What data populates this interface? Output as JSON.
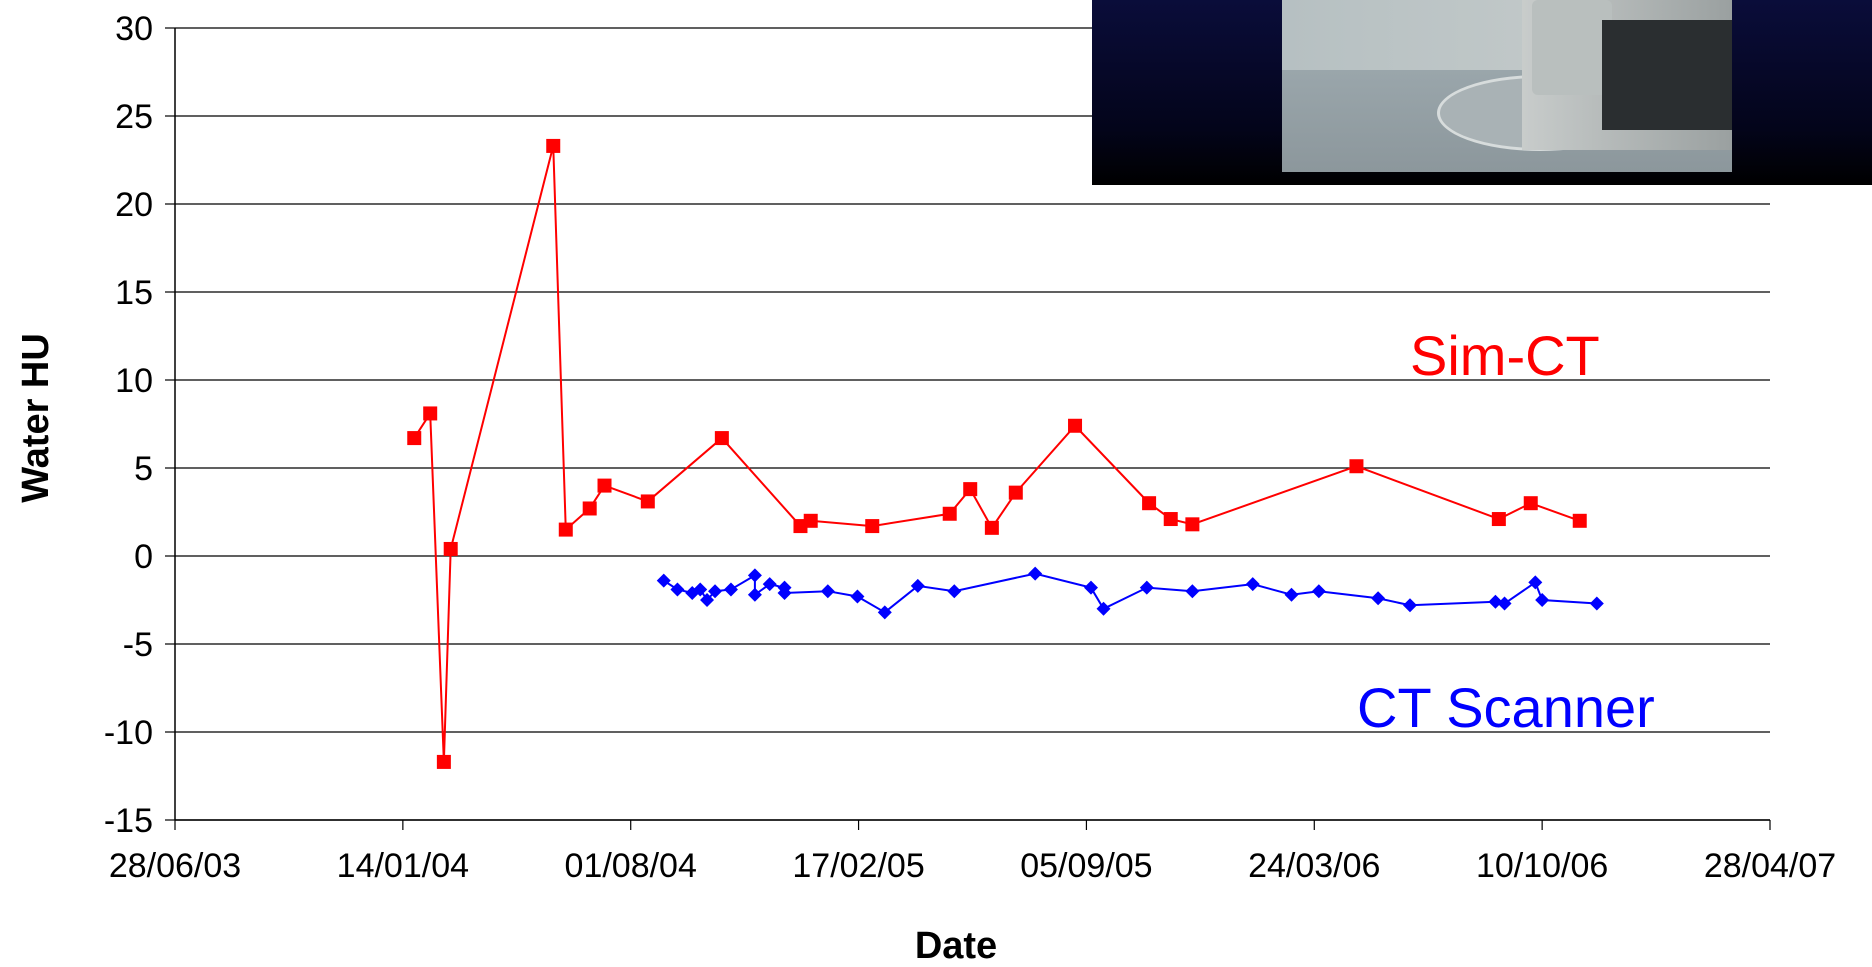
{
  "chart_data": {
    "type": "line",
    "xlabel": "Date",
    "ylabel": "Water HU",
    "ylim": [
      -15,
      30
    ],
    "yticks": [
      "30",
      "25",
      "20",
      "15",
      "10",
      "5",
      "0",
      "-5",
      "-10",
      "-15"
    ],
    "xlim": [
      "2003-06-28",
      "2007-04-28"
    ],
    "xticks": [
      "28/06/03",
      "14/01/04",
      "01/08/04",
      "17/02/05",
      "05/09/05",
      "24/03/06",
      "10/10/06",
      "28/04/07"
    ],
    "grid": "horizontal",
    "series": [
      {
        "name": "Sim-CT",
        "color": "#ff0000",
        "marker": "square",
        "points": [
          {
            "x": "2004-01-24",
            "y": 6.7
          },
          {
            "x": "2004-02-07",
            "y": 8.1
          },
          {
            "x": "2004-02-19",
            "y": -11.7
          },
          {
            "x": "2004-02-25",
            "y": 0.4
          },
          {
            "x": "2004-05-25",
            "y": 23.3
          },
          {
            "x": "2004-06-05",
            "y": 1.5
          },
          {
            "x": "2004-06-26",
            "y": 2.7
          },
          {
            "x": "2004-07-09",
            "y": 4.0
          },
          {
            "x": "2004-08-16",
            "y": 3.1
          },
          {
            "x": "2004-10-20",
            "y": 6.7
          },
          {
            "x": "2004-12-28",
            "y": 1.7
          },
          {
            "x": "2005-01-06",
            "y": 2.0
          },
          {
            "x": "2005-03-01",
            "y": 1.7
          },
          {
            "x": "2005-05-08",
            "y": 2.4
          },
          {
            "x": "2005-05-26",
            "y": 3.8
          },
          {
            "x": "2005-06-14",
            "y": 1.6
          },
          {
            "x": "2005-07-05",
            "y": 3.6
          },
          {
            "x": "2005-08-26",
            "y": 7.4
          },
          {
            "x": "2005-10-30",
            "y": 3.0
          },
          {
            "x": "2005-11-18",
            "y": 2.1
          },
          {
            "x": "2005-12-07",
            "y": 1.8
          },
          {
            "x": "2006-04-30",
            "y": 5.1
          },
          {
            "x": "2006-09-02",
            "y": 2.1
          },
          {
            "x": "2006-09-30",
            "y": 3.0
          },
          {
            "x": "2006-11-12",
            "y": 2.0
          }
        ]
      },
      {
        "name": "CT Scanner",
        "color": "#0000ff",
        "marker": "diamond",
        "points": [
          {
            "x": "2004-08-30",
            "y": -1.4
          },
          {
            "x": "2004-09-11",
            "y": -1.9
          },
          {
            "x": "2004-09-24",
            "y": -2.1
          },
          {
            "x": "2004-10-01",
            "y": -1.9
          },
          {
            "x": "2004-10-07",
            "y": -2.5
          },
          {
            "x": "2004-10-14",
            "y": -2.0
          },
          {
            "x": "2004-10-28",
            "y": -1.9
          },
          {
            "x": "2004-11-18",
            "y": -1.1
          },
          {
            "x": "2004-11-18",
            "y": -2.2
          },
          {
            "x": "2004-12-01",
            "y": -1.6
          },
          {
            "x": "2004-12-14",
            "y": -1.8
          },
          {
            "x": "2004-12-14",
            "y": -2.1
          },
          {
            "x": "2005-01-21",
            "y": -2.0
          },
          {
            "x": "2005-02-16",
            "y": -2.3
          },
          {
            "x": "2005-03-12",
            "y": -3.2
          },
          {
            "x": "2005-04-10",
            "y": -1.7
          },
          {
            "x": "2005-05-12",
            "y": -2.0
          },
          {
            "x": "2005-07-22",
            "y": -1.0
          },
          {
            "x": "2005-09-09",
            "y": -1.8
          },
          {
            "x": "2005-09-20",
            "y": -3.0
          },
          {
            "x": "2005-10-28",
            "y": -1.8
          },
          {
            "x": "2005-12-07",
            "y": -2.0
          },
          {
            "x": "2006-01-29",
            "y": -1.6
          },
          {
            "x": "2006-03-04",
            "y": -2.2
          },
          {
            "x": "2006-03-28",
            "y": -2.0
          },
          {
            "x": "2006-05-19",
            "y": -2.4
          },
          {
            "x": "2006-06-16",
            "y": -2.8
          },
          {
            "x": "2006-08-30",
            "y": -2.6
          },
          {
            "x": "2006-09-07",
            "y": -2.7
          },
          {
            "x": "2006-10-04",
            "y": -1.5
          },
          {
            "x": "2006-10-10",
            "y": -2.5
          },
          {
            "x": "2006-11-27",
            "y": -2.7
          }
        ]
      }
    ],
    "annotations": [
      {
        "text": "Sim-CT",
        "color": "#ff0000"
      },
      {
        "text": "CT Scanner",
        "color": "#0000ff"
      }
    ]
  },
  "inset_photo": {
    "subject": "CT room with scanner couch"
  }
}
